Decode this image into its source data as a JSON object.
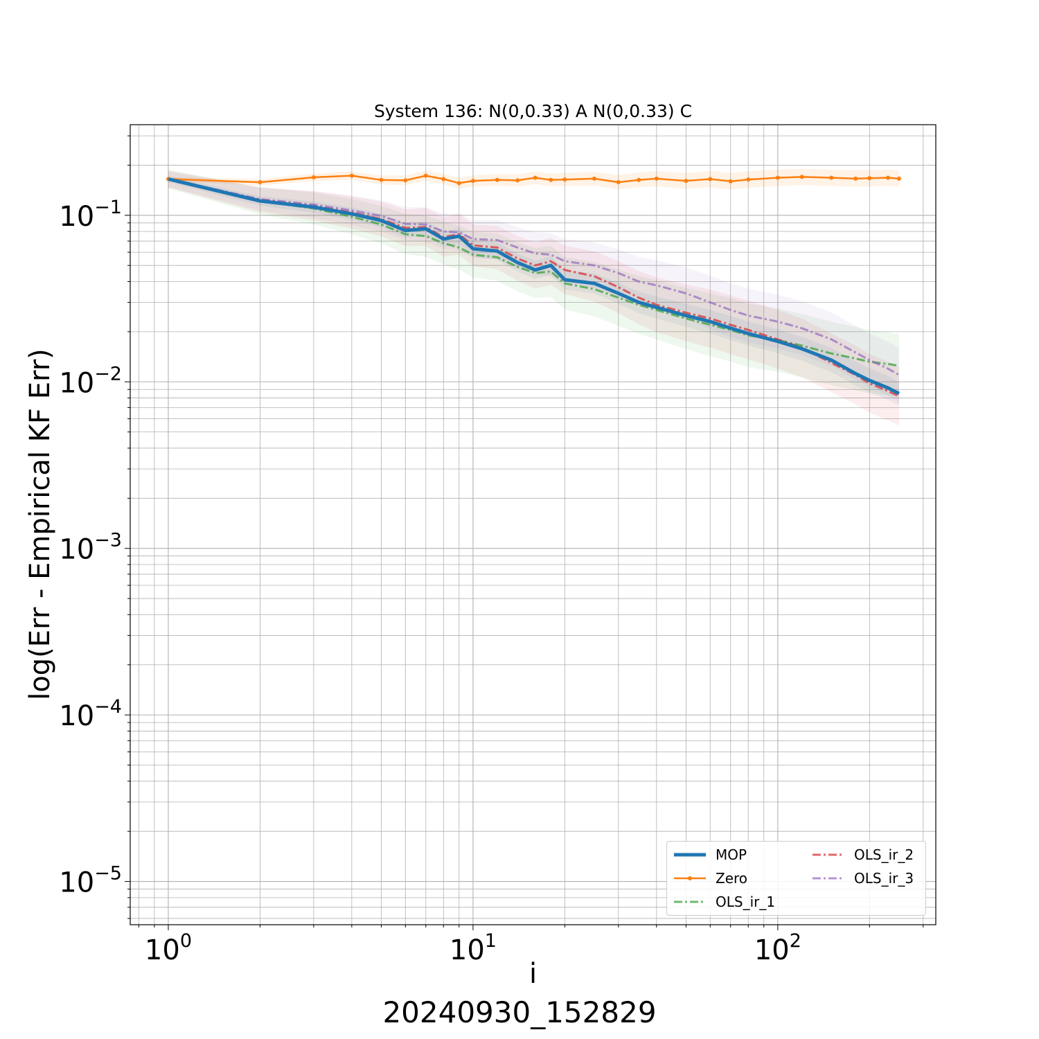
{
  "chart_data": {
    "type": "line",
    "title": "System 136: N(0,0.33) A N(0,0.33) C",
    "xlabel": "i",
    "ylabel": "log(Err - Empirical KF Err)",
    "footer": "20240930_152829",
    "x_scale": "log",
    "y_scale": "log",
    "xlim": [
      0.75,
      330
    ],
    "ylim": [
      5.5e-06,
      0.35
    ],
    "x_ticks": [
      {
        "base": "10",
        "exp": "0"
      },
      {
        "base": "10",
        "exp": "1"
      },
      {
        "base": "10",
        "exp": "2"
      }
    ],
    "y_ticks": [
      {
        "base": "10",
        "exp": "−1"
      },
      {
        "base": "10",
        "exp": "−2"
      },
      {
        "base": "10",
        "exp": "−3"
      },
      {
        "base": "10",
        "exp": "−4"
      },
      {
        "base": "10",
        "exp": "−5"
      }
    ],
    "grid": true,
    "legend_position": "lower-right",
    "series": [
      {
        "name": "MOP",
        "color": "#1f77b4",
        "style": "solid-thick",
        "points": [
          [
            1,
            0.165
          ],
          [
            2,
            0.122
          ],
          [
            3,
            0.112
          ],
          [
            4,
            0.102
          ],
          [
            5,
            0.093
          ],
          [
            6,
            0.081
          ],
          [
            7,
            0.083
          ],
          [
            8,
            0.072
          ],
          [
            9,
            0.075
          ],
          [
            10,
            0.063
          ],
          [
            12,
            0.061
          ],
          [
            14,
            0.052
          ],
          [
            16,
            0.047
          ],
          [
            18,
            0.05
          ],
          [
            20,
            0.041
          ],
          [
            25,
            0.039
          ],
          [
            30,
            0.034
          ],
          [
            35,
            0.03
          ],
          [
            40,
            0.028
          ],
          [
            50,
            0.025
          ],
          [
            60,
            0.023
          ],
          [
            70,
            0.021
          ],
          [
            80,
            0.0195
          ],
          [
            100,
            0.0175
          ],
          [
            120,
            0.0158
          ],
          [
            150,
            0.0135
          ],
          [
            180,
            0.0112
          ],
          [
            200,
            0.0102
          ],
          [
            230,
            0.0092
          ],
          [
            250,
            0.0085
          ]
        ]
      },
      {
        "name": "Zero",
        "color": "#ff7f0e",
        "style": "solid-markers",
        "points": [
          [
            1,
            0.165
          ],
          [
            2,
            0.158
          ],
          [
            3,
            0.169
          ],
          [
            4,
            0.173
          ],
          [
            5,
            0.163
          ],
          [
            6,
            0.162
          ],
          [
            7,
            0.173
          ],
          [
            8,
            0.165
          ],
          [
            9,
            0.156
          ],
          [
            10,
            0.161
          ],
          [
            12,
            0.163
          ],
          [
            14,
            0.162
          ],
          [
            16,
            0.168
          ],
          [
            18,
            0.163
          ],
          [
            20,
            0.164
          ],
          [
            25,
            0.166
          ],
          [
            30,
            0.158
          ],
          [
            35,
            0.163
          ],
          [
            40,
            0.166
          ],
          [
            50,
            0.161
          ],
          [
            60,
            0.165
          ],
          [
            70,
            0.16
          ],
          [
            80,
            0.164
          ],
          [
            100,
            0.168
          ],
          [
            120,
            0.17
          ],
          [
            150,
            0.168
          ],
          [
            180,
            0.166
          ],
          [
            200,
            0.167
          ],
          [
            230,
            0.168
          ],
          [
            250,
            0.166
          ]
        ]
      },
      {
        "name": "OLS_ir_1",
        "color": "#2ca02c",
        "style": "dashdot",
        "points": [
          [
            1,
            0.165
          ],
          [
            2,
            0.122
          ],
          [
            3,
            0.11
          ],
          [
            4,
            0.098
          ],
          [
            5,
            0.088
          ],
          [
            6,
            0.077
          ],
          [
            7,
            0.075
          ],
          [
            8,
            0.068
          ],
          [
            9,
            0.064
          ],
          [
            10,
            0.058
          ],
          [
            12,
            0.056
          ],
          [
            14,
            0.049
          ],
          [
            16,
            0.045
          ],
          [
            18,
            0.046
          ],
          [
            20,
            0.039
          ],
          [
            25,
            0.036
          ],
          [
            30,
            0.032
          ],
          [
            35,
            0.029
          ],
          [
            40,
            0.027
          ],
          [
            50,
            0.024
          ],
          [
            60,
            0.022
          ],
          [
            70,
            0.0205
          ],
          [
            80,
            0.019
          ],
          [
            100,
            0.0178
          ],
          [
            120,
            0.0165
          ],
          [
            150,
            0.0148
          ],
          [
            180,
            0.0138
          ],
          [
            200,
            0.0132
          ],
          [
            230,
            0.0128
          ],
          [
            250,
            0.0125
          ]
        ]
      },
      {
        "name": "OLS_ir_2",
        "color": "#d62728",
        "style": "dashdot",
        "points": [
          [
            1,
            0.165
          ],
          [
            2,
            0.124
          ],
          [
            3,
            0.114
          ],
          [
            4,
            0.104
          ],
          [
            5,
            0.095
          ],
          [
            6,
            0.084
          ],
          [
            7,
            0.085
          ],
          [
            8,
            0.074
          ],
          [
            9,
            0.077
          ],
          [
            10,
            0.066
          ],
          [
            12,
            0.064
          ],
          [
            14,
            0.055
          ],
          [
            16,
            0.05
          ],
          [
            18,
            0.053
          ],
          [
            20,
            0.047
          ],
          [
            25,
            0.043
          ],
          [
            30,
            0.037
          ],
          [
            35,
            0.032
          ],
          [
            40,
            0.029
          ],
          [
            50,
            0.026
          ],
          [
            60,
            0.024
          ],
          [
            70,
            0.022
          ],
          [
            80,
            0.0205
          ],
          [
            100,
            0.018
          ],
          [
            120,
            0.016
          ],
          [
            150,
            0.013
          ],
          [
            180,
            0.011
          ],
          [
            200,
            0.0098
          ],
          [
            230,
            0.0088
          ],
          [
            250,
            0.0082
          ]
        ]
      },
      {
        "name": "OLS_ir_3",
        "color": "#9467bd",
        "style": "dashdot",
        "points": [
          [
            1,
            0.165
          ],
          [
            2,
            0.125
          ],
          [
            3,
            0.116
          ],
          [
            4,
            0.107
          ],
          [
            5,
            0.099
          ],
          [
            6,
            0.089
          ],
          [
            7,
            0.088
          ],
          [
            8,
            0.08
          ],
          [
            9,
            0.079
          ],
          [
            10,
            0.072
          ],
          [
            12,
            0.071
          ],
          [
            14,
            0.064
          ],
          [
            16,
            0.059
          ],
          [
            18,
            0.058
          ],
          [
            20,
            0.053
          ],
          [
            25,
            0.05
          ],
          [
            30,
            0.045
          ],
          [
            35,
            0.04
          ],
          [
            40,
            0.038
          ],
          [
            50,
            0.034
          ],
          [
            60,
            0.03
          ],
          [
            70,
            0.027
          ],
          [
            80,
            0.025
          ],
          [
            100,
            0.023
          ],
          [
            120,
            0.021
          ],
          [
            150,
            0.018
          ],
          [
            180,
            0.015
          ],
          [
            200,
            0.0135
          ],
          [
            230,
            0.012
          ],
          [
            250,
            0.011
          ]
        ]
      }
    ]
  }
}
